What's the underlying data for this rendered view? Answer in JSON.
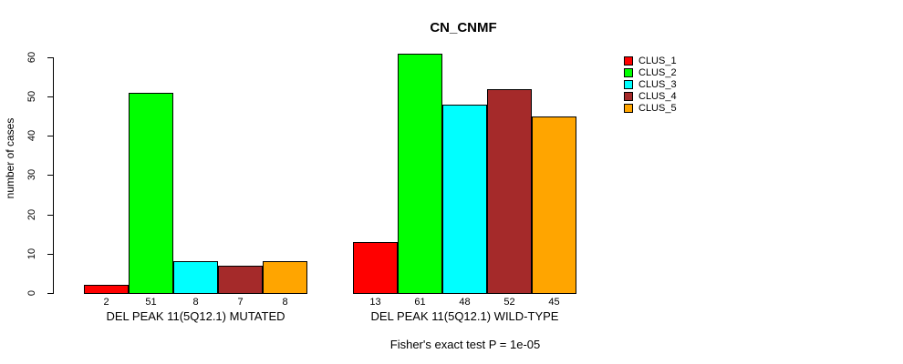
{
  "figure": {
    "background": "#ffffff",
    "axis_color": "#000000"
  },
  "chart_data": {
    "type": "bar",
    "title": "CN_CNMF",
    "xlabel": "",
    "ylabel": "number of cases",
    "ylim": [
      0,
      60
    ],
    "yticks": [
      0,
      10,
      20,
      30,
      40,
      50,
      60
    ],
    "grid": false,
    "legend_position": "right",
    "annotation": "Fisher's exact test P = 1e-05",
    "groups": [
      {
        "label": "DEL PEAK 11(5Q12.1) MUTATED",
        "values": [
          2,
          51,
          8,
          7,
          8
        ]
      },
      {
        "label": "DEL PEAK 11(5Q12.1) WILD-TYPE",
        "values": [
          13,
          61,
          48,
          52,
          45
        ]
      }
    ],
    "series": [
      {
        "name": "CLUS_1",
        "color": "#FF0000"
      },
      {
        "name": "CLUS_2",
        "color": "#00FF00"
      },
      {
        "name": "CLUS_3",
        "color": "#00FFFF"
      },
      {
        "name": "CLUS_4",
        "color": "#A52A2A"
      },
      {
        "name": "CLUS_5",
        "color": "#FFA500"
      }
    ]
  }
}
